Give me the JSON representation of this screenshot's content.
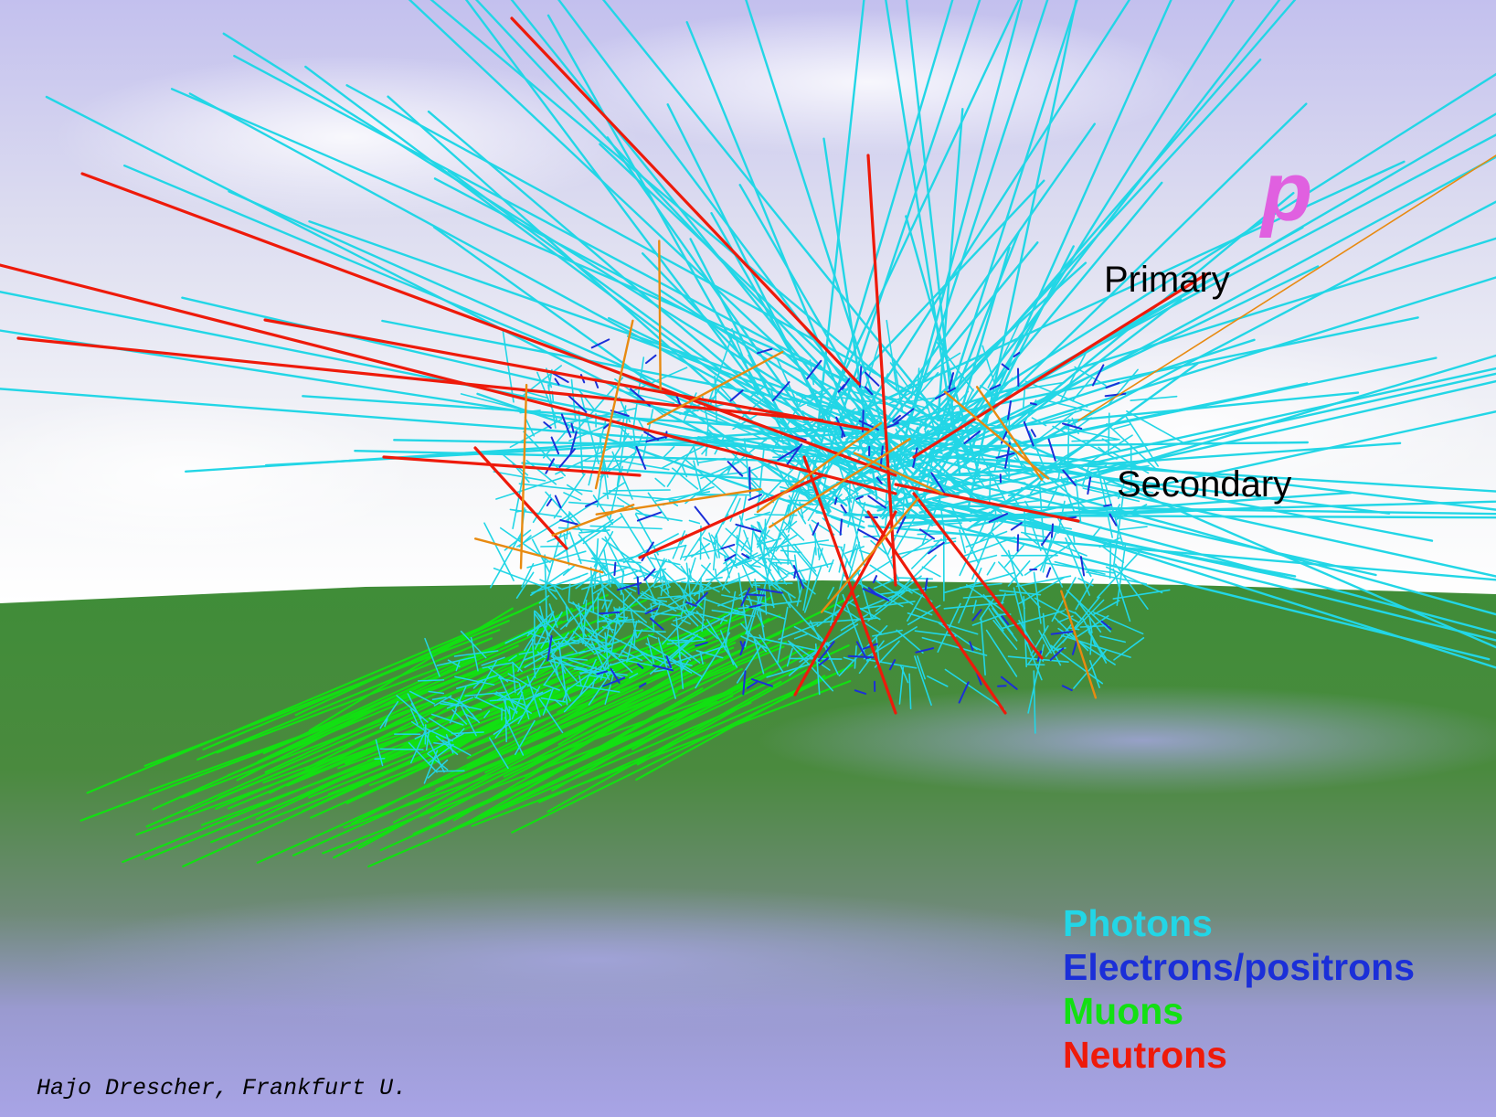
{
  "particle_symbol": "p",
  "labels": {
    "primary": "Primary",
    "secondary": "Secondary"
  },
  "legend": [
    {
      "label": "Photons",
      "color": "#22d6e6"
    },
    {
      "label": "Electrons/positrons",
      "color": "#1b2fd8"
    },
    {
      "label": "Muons",
      "color": "#12e012"
    },
    {
      "label": "Neutrons",
      "color": "#ee1a0a"
    }
  ],
  "credit": "Hajo Drescher, Frankfurt U.",
  "colors": {
    "particle_symbol": "#e060e0",
    "sky_top": "#c3c0ee",
    "sky_horizon": "#f4f5f8",
    "ground": "#3d8a38",
    "ground_far": "#9a9ad8",
    "photon": "#22d6e6",
    "electron": "#1b2fd8",
    "muon": "#12e012",
    "neutron": "#ee1a0a",
    "hadron": "#e88a10"
  }
}
